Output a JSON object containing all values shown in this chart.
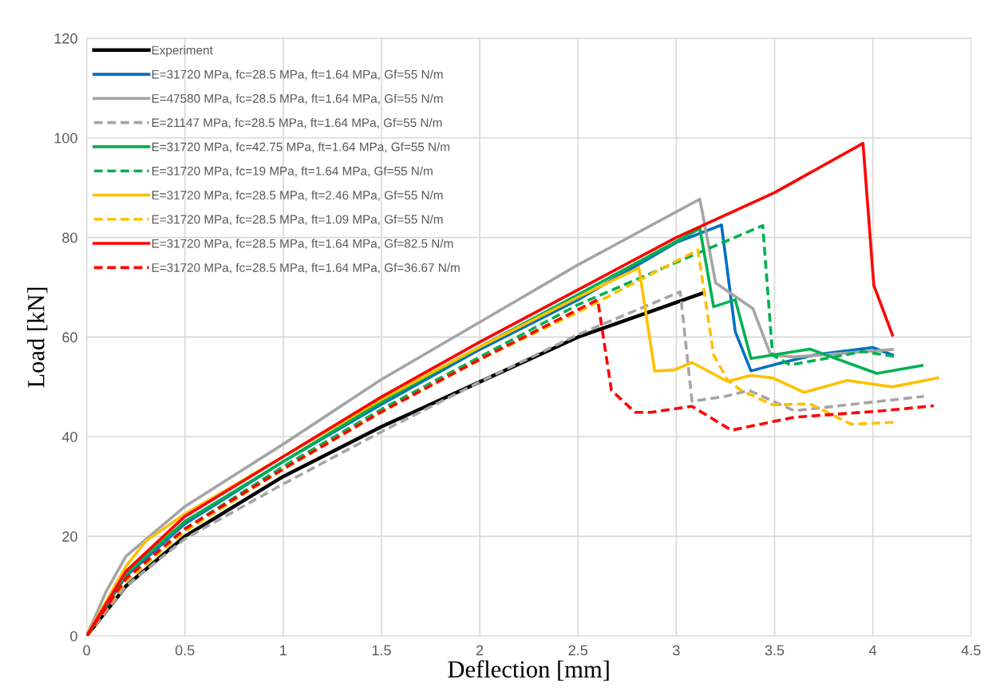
{
  "chart_data": {
    "type": "line",
    "xlabel": "Deflection [mm]",
    "ylabel": "Load [kN]",
    "xlim": [
      0,
      4.5
    ],
    "ylim": [
      0,
      120
    ],
    "xticks": [
      0,
      0.5,
      1,
      1.5,
      2,
      2.5,
      3,
      3.5,
      4,
      4.5
    ],
    "yticks": [
      0,
      20,
      40,
      60,
      80,
      100,
      120
    ],
    "grid": true,
    "legend": "top left",
    "series": [
      {
        "name": "Experiment",
        "color": "#000000",
        "line_style": "solid",
        "x": [
          0,
          0.2,
          0.5,
          1,
          1.5,
          2,
          2.5,
          3.14
        ],
        "values": [
          0,
          10,
          20,
          32,
          42,
          51,
          60,
          68.9
        ]
      },
      {
        "name": "E=31720 MPa, fc=28.5 MPa, ft=1.64 MPa, Gf=55 N/m",
        "color": "#0070c0",
        "line_style": "solid",
        "x": [
          0,
          0.2,
          0.5,
          1,
          1.5,
          2,
          2.5,
          3.0,
          3.23,
          3.3,
          3.38,
          3.51,
          3.7,
          4.0,
          4.1
        ],
        "values": [
          0,
          12,
          22.5,
          35,
          46.5,
          57.5,
          67.5,
          79,
          82.5,
          61.1,
          53.2,
          54.6,
          56.4,
          57.9,
          56.4
        ]
      },
      {
        "name": "E=47580 MPa, fc=28.5 MPa, ft=1.64 MPa, Gf=55 N/m",
        "color": "#a5a5a5",
        "line_style": "solid",
        "x": [
          0,
          0.1,
          0.2,
          0.5,
          1,
          1.5,
          2,
          2.5,
          3.12,
          3.2,
          3.39,
          3.48,
          3.6,
          4.1
        ],
        "values": [
          0,
          9,
          16,
          26,
          38.5,
          51.5,
          63,
          74.5,
          87.7,
          70.9,
          65.7,
          56.4,
          56,
          57.5
        ]
      },
      {
        "name": "E=21147 MPa, fc=28.5 MPa, ft=1.64 MPa, Gf=55 N/m",
        "color": "#a5a5a5",
        "line_style": "dashed",
        "x": [
          0,
          0.2,
          0.5,
          1,
          1.5,
          2,
          2.5,
          3.02,
          3.08,
          3.25,
          3.37,
          3.6,
          4.26
        ],
        "values": [
          0,
          10,
          19.5,
          30.5,
          41,
          51,
          60.5,
          69.1,
          47.1,
          48.1,
          49.3,
          45.2,
          48.1
        ]
      },
      {
        "name": "E=31720 MPa, fc=42.75 MPa, ft=1.64 MPa, Gf=55 N/m",
        "color": "#00b050",
        "line_style": "solid",
        "x": [
          0,
          0.2,
          0.5,
          1,
          1.5,
          2,
          2.5,
          3.12,
          3.19,
          3.3,
          3.38,
          3.68,
          4.02,
          4.25
        ],
        "values": [
          0,
          12.5,
          23,
          35,
          47,
          58,
          68.5,
          81.8,
          66.1,
          67.5,
          55.7,
          57.6,
          52.7,
          54.3
        ]
      },
      {
        "name": "E=31720 MPa, fc=19 MPa, ft=1.64 MPa, Gf=55 N/m",
        "color": "#00b050",
        "line_style": "dashed",
        "x": [
          0,
          0.2,
          0.5,
          1,
          1.5,
          2,
          2.5,
          3.0,
          3.44,
          3.49,
          3.58,
          3.95,
          4.11
        ],
        "values": [
          0,
          11.5,
          21.5,
          34,
          45.5,
          56,
          66.5,
          75,
          82.4,
          56.4,
          54.4,
          57.1,
          56.1
        ]
      },
      {
        "name": "E=31720 MPa, fc=28.5 MPa, ft=2.46 MPa, Gf=55 N/m",
        "color": "#ffc000",
        "line_style": "solid",
        "x": [
          0,
          0.2,
          0.3,
          0.5,
          1,
          1.5,
          2,
          2.5,
          2.81,
          2.89,
          2.99,
          3.08,
          3.26,
          3.38,
          3.49,
          3.65,
          3.87,
          4.1,
          4.33
        ],
        "values": [
          0,
          14,
          19,
          24.5,
          36,
          47.5,
          58,
          68,
          73.9,
          53.2,
          53.4,
          54.9,
          51.1,
          52.3,
          51.8,
          48.9,
          51.3,
          50,
          51.8
        ]
      },
      {
        "name": "E=31720 MPa, fc=28.5 MPa, ft=1.09 MPa, Gf=55 N/m",
        "color": "#ffc000",
        "line_style": "dashed",
        "x": [
          0,
          0.2,
          0.5,
          1,
          1.5,
          2,
          2.5,
          3.11,
          3.19,
          3.26,
          3.33,
          3.49,
          3.68,
          3.89,
          4.11
        ],
        "values": [
          0,
          11,
          21,
          33.5,
          45,
          55.5,
          65,
          77.5,
          56.4,
          51.4,
          49.3,
          46.4,
          46.6,
          42.5,
          42.9
        ]
      },
      {
        "name": "E=31720 MPa, fc=28.5 MPa, ft=1.64 MPa, Gf=82.5 N/m",
        "color": "#ff0000",
        "line_style": "solid",
        "x": [
          0,
          0.2,
          0.5,
          1,
          1.5,
          2,
          2.5,
          3.0,
          3.5,
          3.95,
          4.005,
          4.1
        ],
        "values": [
          0,
          13,
          24,
          36,
          48,
          59,
          69.5,
          80,
          89,
          98.9,
          70.4,
          60.4
        ]
      },
      {
        "name": "E=31720 MPa, fc=28.5 MPa, ft=1.64 MPa, Gf=36.67 N/m",
        "color": "#ff0000",
        "line_style": "dashed",
        "x": [
          0,
          0.2,
          0.5,
          1,
          1.5,
          2,
          2.6,
          2.67,
          2.79,
          2.87,
          3.08,
          3.28,
          3.6,
          4.05,
          4.31
        ],
        "values": [
          0,
          11.5,
          21.5,
          33.5,
          45,
          55.5,
          67.5,
          49.3,
          44.9,
          44.9,
          46.1,
          41.3,
          43.9,
          45.2,
          46.2
        ]
      }
    ]
  }
}
